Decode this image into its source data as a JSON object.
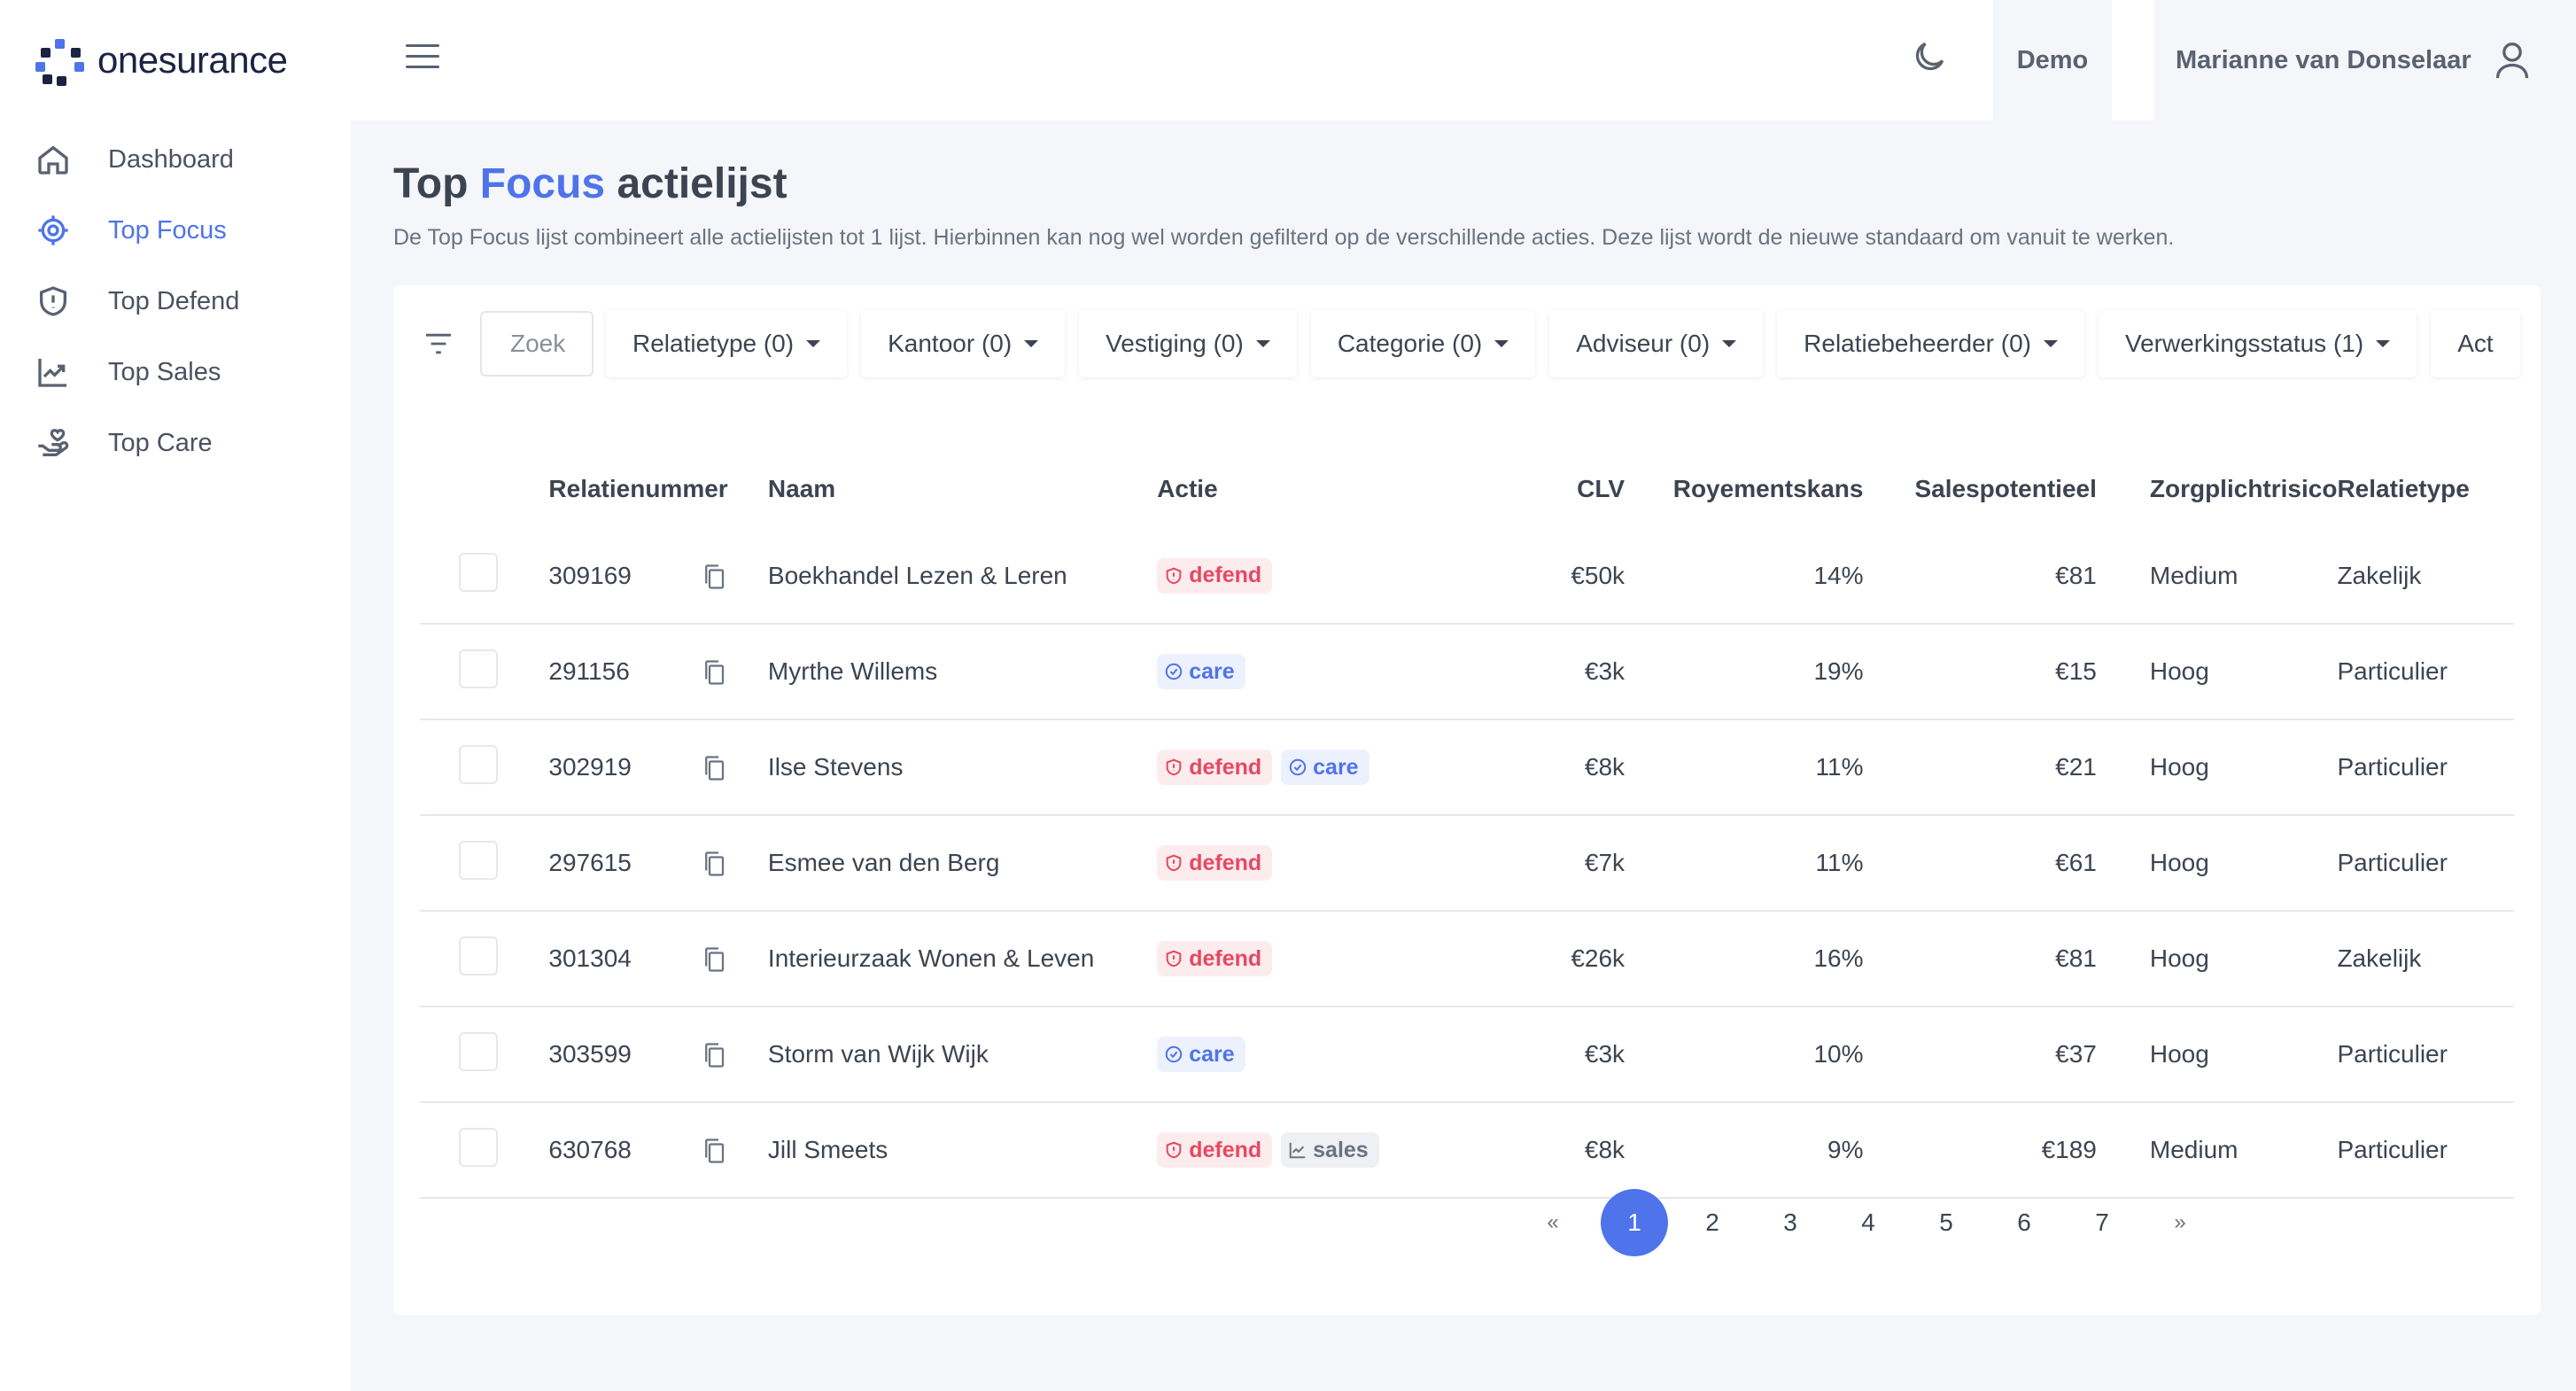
{
  "brand": {
    "name": "onesurance"
  },
  "sidebar": {
    "items": [
      {
        "label": "Dashboard",
        "icon": "home-icon"
      },
      {
        "label": "Top Focus",
        "icon": "target-icon",
        "active": true
      },
      {
        "label": "Top Defend",
        "icon": "shield-icon"
      },
      {
        "label": "Top Sales",
        "icon": "trending-up-icon"
      },
      {
        "label": "Top Care",
        "icon": "hand-heart-icon"
      }
    ]
  },
  "header": {
    "demo_label": "Demo",
    "user_name": "Marianne van Donselaar"
  },
  "page": {
    "title_prefix": "Top",
    "title_accent": "Focus",
    "title_suffix": "actielijst",
    "subtitle": "De Top Focus lijst combineert alle actielijsten tot 1 lijst. Hierbinnen kan nog wel worden gefilterd op de verschillende acties. Deze lijst wordt de nieuwe standaard om vanuit te werken."
  },
  "filters": {
    "search_placeholder": "Zoek",
    "dropdowns": [
      "Relatietype (0)",
      "Kantoor (0)",
      "Vestiging (0)",
      "Categorie (0)",
      "Adviseur (0)",
      "Relatiebeheerder (0)",
      "Verwerkingsstatus (1)",
      "Act"
    ]
  },
  "table": {
    "columns": [
      "Relatienummer",
      "Naam",
      "Actie",
      "CLV",
      "Royementskans",
      "Salespotentieel",
      "Zorgplichtrisico",
      "Relatietype"
    ],
    "rows": [
      {
        "id": "309169",
        "name": "Boekhandel Lezen & Leren",
        "actions": [
          "defend"
        ],
        "clv": "€50k",
        "roy": "14%",
        "sales": "€81",
        "risk": "Medium",
        "type": "Zakelijk"
      },
      {
        "id": "291156",
        "name": "Myrthe Willems",
        "actions": [
          "care"
        ],
        "clv": "€3k",
        "roy": "19%",
        "sales": "€15",
        "risk": "Hoog",
        "type": "Particulier"
      },
      {
        "id": "302919",
        "name": "Ilse Stevens",
        "actions": [
          "defend",
          "care"
        ],
        "clv": "€8k",
        "roy": "11%",
        "sales": "€21",
        "risk": "Hoog",
        "type": "Particulier"
      },
      {
        "id": "297615",
        "name": "Esmee van den Berg",
        "actions": [
          "defend"
        ],
        "clv": "€7k",
        "roy": "11%",
        "sales": "€61",
        "risk": "Hoog",
        "type": "Particulier"
      },
      {
        "id": "301304",
        "name": "Interieurzaak Wonen & Leven",
        "actions": [
          "defend"
        ],
        "clv": "€26k",
        "roy": "16%",
        "sales": "€81",
        "risk": "Hoog",
        "type": "Zakelijk"
      },
      {
        "id": "303599",
        "name": "Storm van Wijk Wijk",
        "actions": [
          "care"
        ],
        "clv": "€3k",
        "roy": "10%",
        "sales": "€37",
        "risk": "Hoog",
        "type": "Particulier"
      },
      {
        "id": "630768",
        "name": "Jill Smeets",
        "actions": [
          "defend",
          "sales"
        ],
        "clv": "€8k",
        "roy": "9%",
        "sales": "€189",
        "risk": "Medium",
        "type": "Particulier"
      }
    ]
  },
  "pagination": {
    "prev": "«",
    "next": "»",
    "pages": [
      "1",
      "2",
      "3",
      "4",
      "5",
      "6",
      "7"
    ],
    "current": "1"
  },
  "colors": {
    "accent": "#4f73ea",
    "defend": "#e8485f",
    "sales": "#6b7280"
  }
}
